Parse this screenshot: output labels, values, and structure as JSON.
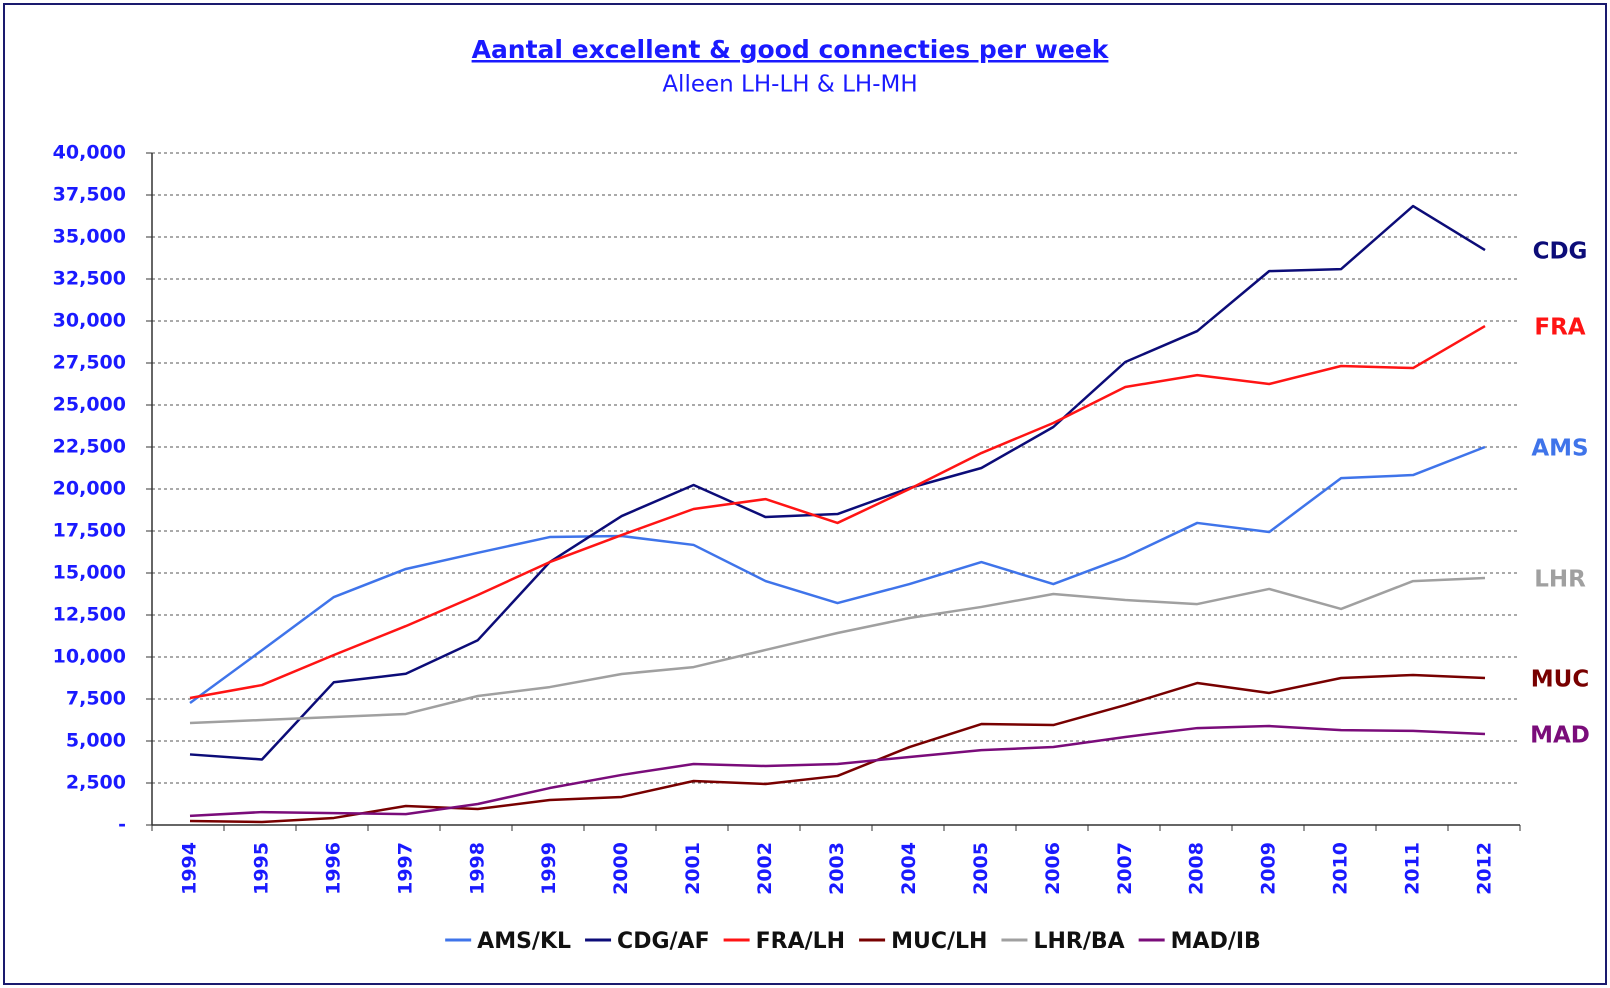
{
  "chart_data": {
    "type": "line",
    "title": "Aantal excellent & good connecties per week",
    "subtitle": "Alleen LH-LH & LH-MH",
    "categories": [
      "1994",
      "1995",
      "1996",
      "1997",
      "1998",
      "1999",
      "2000",
      "2001",
      "2002",
      "2003",
      "2004",
      "2005",
      "2006",
      "2007",
      "2008",
      "2009",
      "2010",
      "2011",
      "2012"
    ],
    "ylim": [
      0,
      40000
    ],
    "yticks": [
      {
        "value": 0,
        "label": "-"
      },
      {
        "value": 2500,
        "label": "2,500"
      },
      {
        "value": 5000,
        "label": "5,000"
      },
      {
        "value": 7500,
        "label": "7,500"
      },
      {
        "value": 10000,
        "label": "10,000"
      },
      {
        "value": 12500,
        "label": "12,500"
      },
      {
        "value": 15000,
        "label": "15,000"
      },
      {
        "value": 17500,
        "label": "17,500"
      },
      {
        "value": 20000,
        "label": "20,000"
      },
      {
        "value": 22500,
        "label": "22,500"
      },
      {
        "value": 25000,
        "label": "25,000"
      },
      {
        "value": 27500,
        "label": "27,500"
      },
      {
        "value": 30000,
        "label": "30,000"
      },
      {
        "value": 32500,
        "label": "32,500"
      },
      {
        "value": 35000,
        "label": "35,000"
      },
      {
        "value": 37500,
        "label": "37,500"
      },
      {
        "value": 40000,
        "label": "40,000"
      }
    ],
    "grid": true,
    "legend": "bottom",
    "series": [
      {
        "name": "AMS/KL",
        "end_label": "AMS",
        "color": "#3f74ea",
        "values": [
          7260,
          10400,
          13570,
          15240,
          16200,
          17140,
          17200,
          16670,
          14520,
          13210,
          14340,
          15650,
          14340,
          15950,
          17980,
          17440,
          20650,
          20830,
          22500
        ]
      },
      {
        "name": "CDG/AF",
        "end_label": "CDG",
        "color": "#0c0c78",
        "values": [
          4200,
          3900,
          8500,
          9000,
          11000,
          15650,
          18390,
          20240,
          18330,
          18510,
          20060,
          21250,
          23690,
          27560,
          29400,
          32970,
          33090,
          36840,
          34220
        ]
      },
      {
        "name": "FRA/LH",
        "end_label": "FRA",
        "color": "#ff1414",
        "values": [
          7560,
          8330,
          10120,
          11840,
          13690,
          15650,
          17260,
          18810,
          19400,
          17980,
          20000,
          22140,
          23930,
          26070,
          26780,
          26250,
          27320,
          27200,
          29700
        ]
      },
      {
        "name": "MUC/LH",
        "end_label": "MUC",
        "color": "#780000",
        "values": [
          240,
          180,
          420,
          1130,
          950,
          1490,
          1670,
          2620,
          2440,
          2920,
          4640,
          6010,
          5950,
          7140,
          8450,
          7860,
          8750,
          8930,
          8750
        ]
      },
      {
        "name": "LHR/BA",
        "end_label": "LHR",
        "color": "#a0a0a0",
        "values": [
          6070,
          6250,
          6430,
          6610,
          7680,
          8210,
          8990,
          9400,
          10420,
          11430,
          12320,
          12980,
          13750,
          13390,
          13150,
          14050,
          12860,
          14520,
          14700
        ]
      },
      {
        "name": "MAD/IB",
        "end_label": "MAD",
        "color": "#7a0c7a",
        "values": [
          540,
          770,
          710,
          650,
          1250,
          2200,
          2980,
          3630,
          3510,
          3630,
          4050,
          4460,
          4640,
          5240,
          5770,
          5890,
          5650,
          5600,
          5420
        ]
      }
    ]
  }
}
